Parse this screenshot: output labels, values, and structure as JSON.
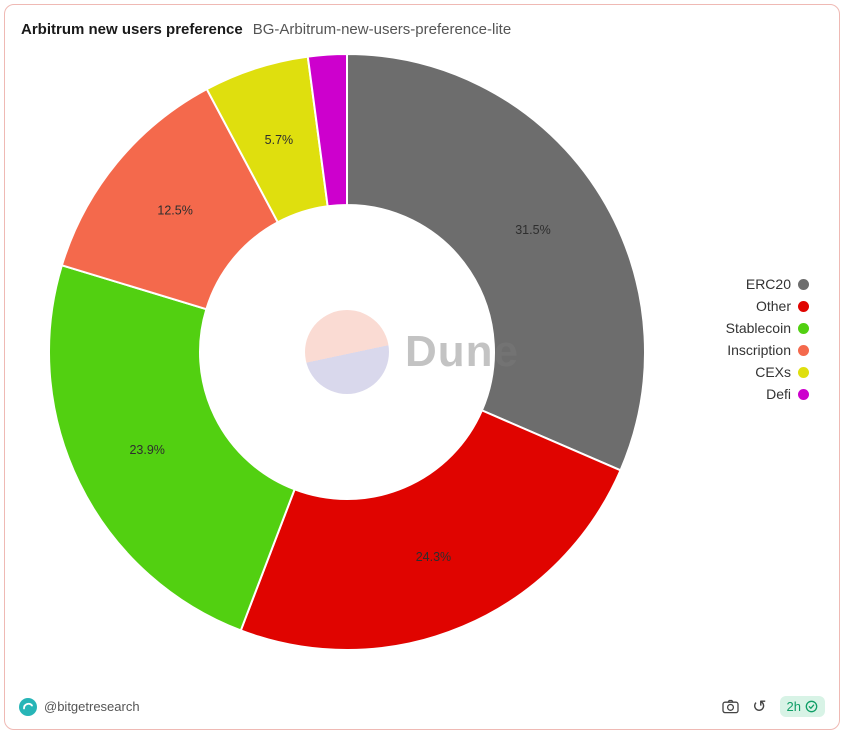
{
  "header": {
    "title": "Arbitrum new users preference",
    "subtitle": "BG-Arbitrum-new-users-preference-lite"
  },
  "watermark": {
    "text": "Dune"
  },
  "chart_data": {
    "type": "pie",
    "donut": true,
    "title": "Arbitrum new users preference",
    "legend_position": "right",
    "slices": [
      {
        "label": "ERC20",
        "value": 31.5,
        "color": "#6d6d6d",
        "data_label": "31.5%"
      },
      {
        "label": "Other",
        "value": 24.3,
        "color": "#e00400",
        "data_label": "24.3%"
      },
      {
        "label": "Stablecoin",
        "value": 23.9,
        "color": "#52d011",
        "data_label": "23.9%"
      },
      {
        "label": "Inscription",
        "value": 12.5,
        "color": "#f4694c",
        "data_label": "12.5%"
      },
      {
        "label": "CEXs",
        "value": 5.7,
        "color": "#dfdf0e",
        "data_label": "5.7%"
      },
      {
        "label": "Defi",
        "value": 2.1,
        "color": "#cd00cd",
        "data_label": ""
      }
    ]
  },
  "footer": {
    "handle": "@bitgetresearch",
    "refresh_icon_glyph": "↺",
    "age_badge": "2h"
  },
  "colors": {
    "border": "#efb9b4",
    "badge_bg": "#d8f3e6",
    "badge_text": "#0f9e66",
    "avatar": "#27b5b7"
  }
}
